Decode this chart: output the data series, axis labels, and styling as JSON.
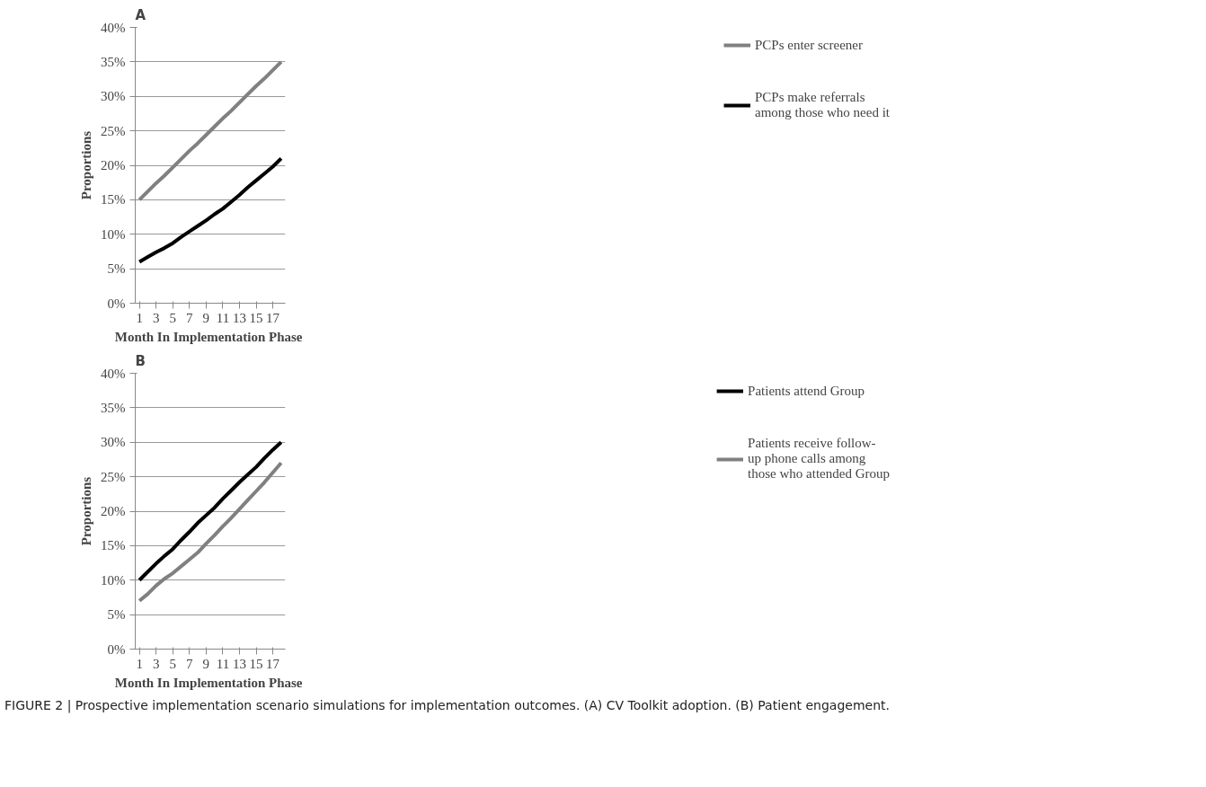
{
  "chart_data": [
    {
      "type": "line",
      "title": "A",
      "xlabel": "Month In Implementation  Phase",
      "ylabel": "Proportions",
      "x": [
        1,
        2,
        3,
        4,
        5,
        6,
        7,
        8,
        9,
        10,
        11,
        12,
        13,
        14,
        15,
        16,
        17,
        18
      ],
      "xlim": [
        0.5,
        18.5
      ],
      "xticks": [
        1,
        3,
        5,
        7,
        9,
        11,
        13,
        15,
        17
      ],
      "ylim": [
        0,
        40
      ],
      "yticks": [
        {
          "value": 0,
          "label": "0%"
        },
        {
          "value": 5,
          "label": "5%"
        },
        {
          "value": 10,
          "label": "10%"
        },
        {
          "value": 15,
          "label": "15%"
        },
        {
          "value": 20,
          "label": "20%"
        },
        {
          "value": 25,
          "label": "25%"
        },
        {
          "value": 30,
          "label": "30%"
        },
        {
          "value": 35,
          "label": "35%"
        },
        {
          "value": 40,
          "label": "40%"
        }
      ],
      "grid": "y",
      "legend": "right",
      "marker": "none",
      "line_style": "solid",
      "series": [
        {
          "name": "PCPs enter screener",
          "color": "#808080",
          "values": [
            15,
            16.2,
            17.4,
            18.5,
            19.7,
            20.9,
            22.1,
            23.2,
            24.4,
            25.6,
            26.8,
            27.9,
            29.1,
            30.3,
            31.5,
            32.6,
            33.8,
            35
          ]
        },
        {
          "name": "PCPs make referrals among those who need it",
          "color": "#000000",
          "values": [
            6,
            6.7,
            7.4,
            8.0,
            8.7,
            9.6,
            10.4,
            11.2,
            12.0,
            12.9,
            13.7,
            14.7,
            15.7,
            16.8,
            17.8,
            18.8,
            19.8,
            21
          ]
        }
      ]
    },
    {
      "type": "line",
      "title": "B",
      "xlabel": "Month In Implementation  Phase",
      "ylabel": "Proportions",
      "x": [
        1,
        2,
        3,
        4,
        5,
        6,
        7,
        8,
        9,
        10,
        11,
        12,
        13,
        14,
        15,
        16,
        17,
        18
      ],
      "xlim": [
        0.5,
        18.5
      ],
      "xticks": [
        1,
        3,
        5,
        7,
        9,
        11,
        13,
        15,
        17
      ],
      "ylim": [
        0,
        40
      ],
      "yticks": [
        {
          "value": 0,
          "label": "0%"
        },
        {
          "value": 5,
          "label": "5%"
        },
        {
          "value": 10,
          "label": "10%"
        },
        {
          "value": 15,
          "label": "15%"
        },
        {
          "value": 20,
          "label": "20%"
        },
        {
          "value": 25,
          "label": "25%"
        },
        {
          "value": 30,
          "label": "30%"
        },
        {
          "value": 35,
          "label": "35%"
        },
        {
          "value": 40,
          "label": "40%"
        }
      ],
      "grid": "y",
      "legend": "right",
      "marker": "none",
      "line_style": "solid",
      "annotations": [
        "FIGURE 2 | Prospective implementation scenario simulations for implementation outcomes. (A) CV Toolkit adoption. (B) Patient engagement."
      ],
      "series": [
        {
          "name": "Patients attend Group",
          "color": "#000000",
          "values": [
            10,
            11.2,
            12.4,
            13.5,
            14.5,
            15.8,
            17,
            18.3,
            19.4,
            20.5,
            21.8,
            23,
            24.2,
            25.3,
            26.4,
            27.7,
            28.9,
            30
          ]
        },
        {
          "name": "Patients receive follow-up phone calls among those who attended Group",
          "color": "#808080",
          "values": [
            7,
            8,
            9.2,
            10.2,
            11,
            12,
            13,
            14,
            15.3,
            16.5,
            17.8,
            19,
            20.3,
            21.6,
            22.9,
            24.2,
            25.6,
            27
          ]
        }
      ]
    }
  ]
}
